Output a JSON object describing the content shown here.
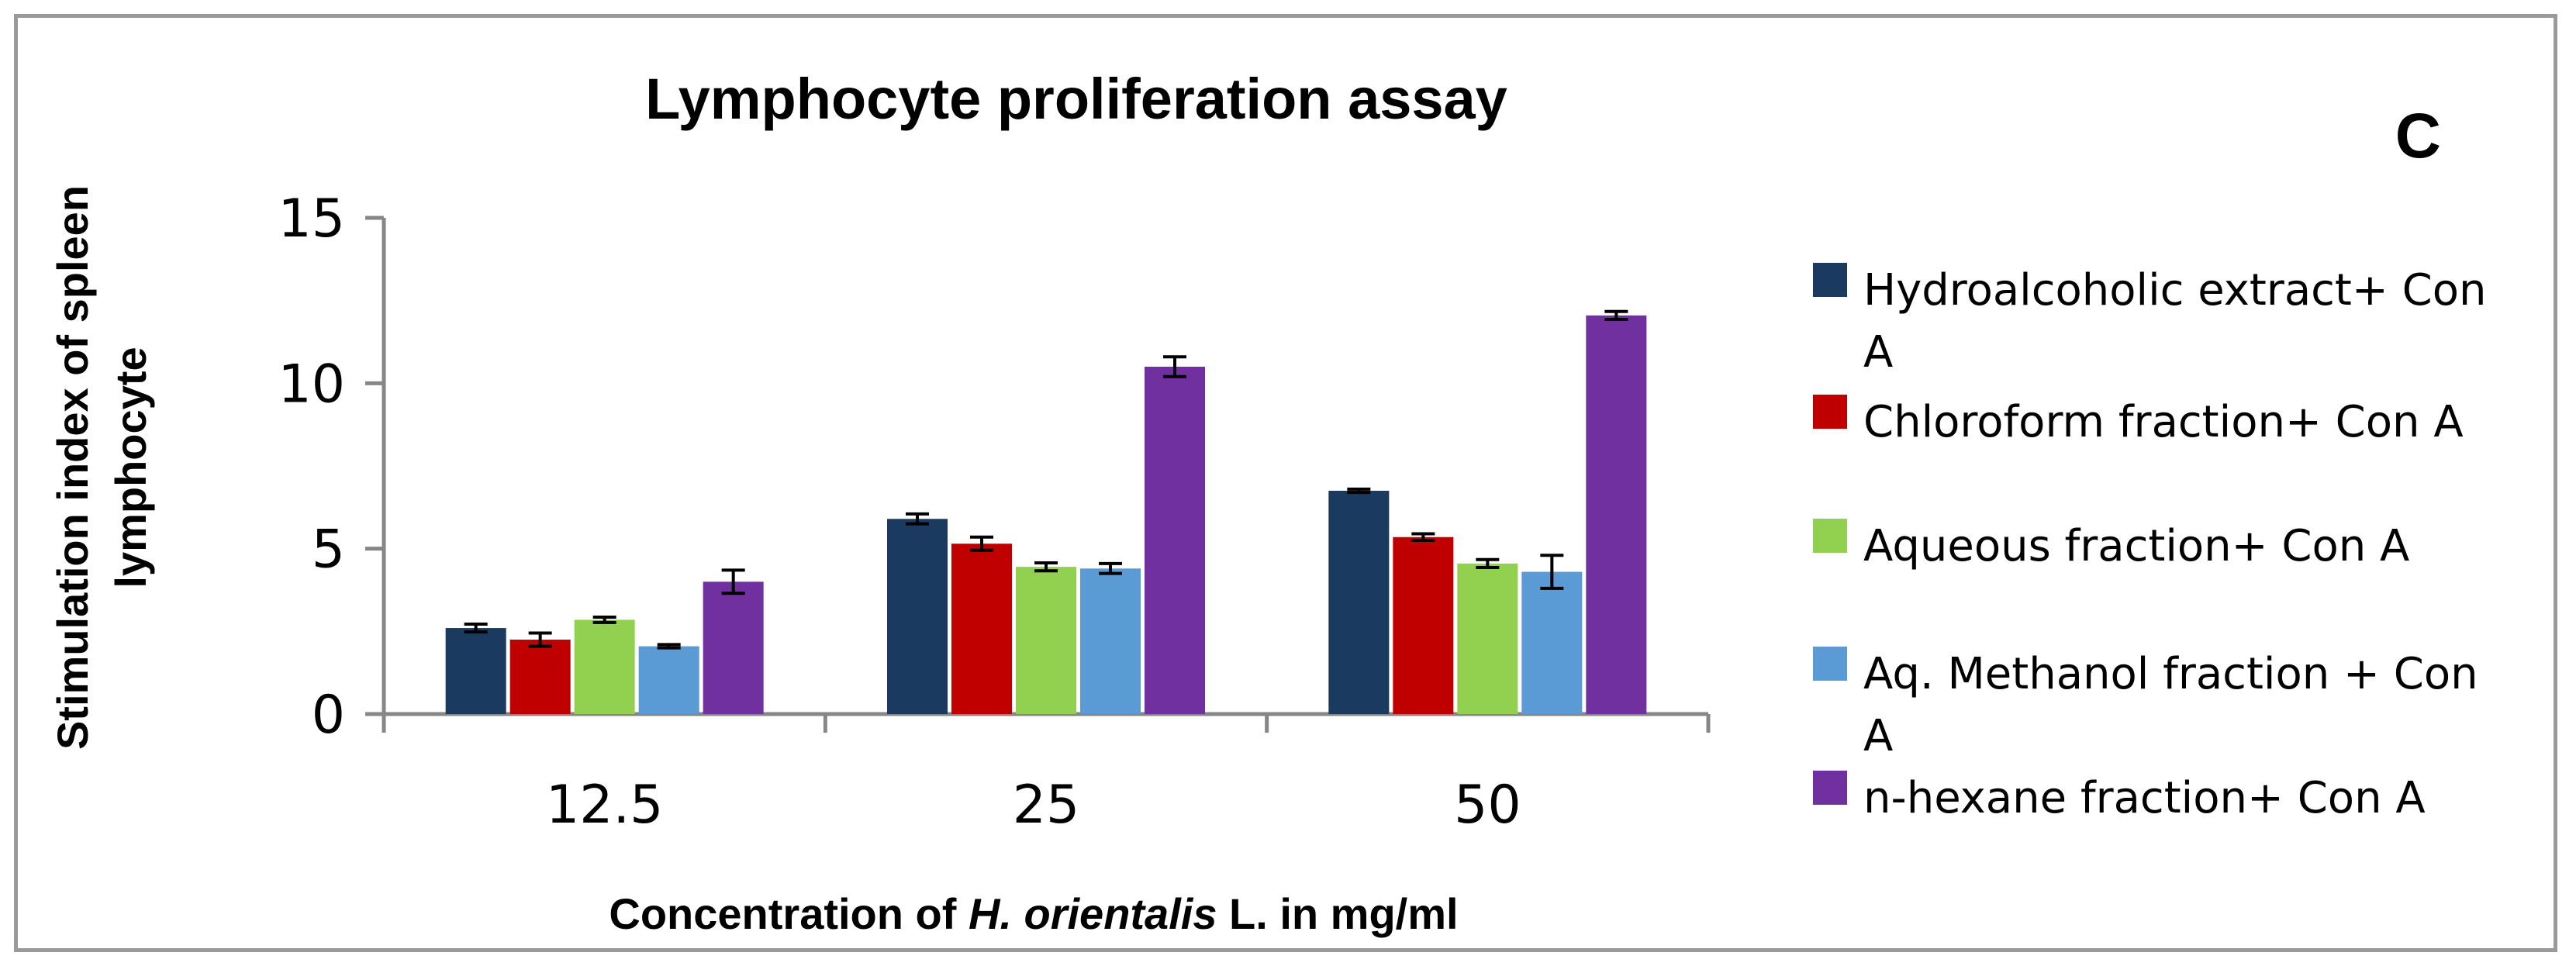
{
  "chart_data": {
    "type": "bar",
    "title": "Lymphocyte proliferation assay",
    "panel_label": "C",
    "xlabel_parts": [
      {
        "text": "Concentration of ",
        "italic": false
      },
      {
        "text": "H. orientalis",
        "italic": true
      },
      {
        "text": " L. in mg/ml",
        "italic": false
      }
    ],
    "ylabel_lines": [
      "Stimulation index of spleen",
      "lymphocyte"
    ],
    "categories": [
      "12.5",
      "25",
      "50"
    ],
    "ylim": [
      0,
      15
    ],
    "yticks": [
      0,
      5,
      10,
      15
    ],
    "grid": false,
    "legend_position": "right",
    "series": [
      {
        "name": "Hydroalcoholic extract+ Con A",
        "legend_lines": [
          "Hydroalcoholic extract+ Con",
          "A"
        ],
        "color": "#1b3a5f",
        "values": [
          2.6,
          5.9,
          6.75
        ],
        "errors": [
          0.12,
          0.15,
          0.05
        ]
      },
      {
        "name": "Chloroform fraction+ Con A",
        "legend_lines": [
          "Chloroform fraction+ Con A"
        ],
        "color": "#c00000",
        "values": [
          2.25,
          5.15,
          5.35
        ],
        "errors": [
          0.2,
          0.2,
          0.1
        ]
      },
      {
        "name": "Aqueous fraction+ Con A",
        "legend_lines": [
          "Aqueous fraction+ Con A"
        ],
        "color": "#92d050",
        "values": [
          2.85,
          4.45,
          4.55
        ],
        "errors": [
          0.08,
          0.12,
          0.12
        ]
      },
      {
        "name": "Aq. Methanol fraction + Con A",
        "legend_lines": [
          "Aq. Methanol fraction + Con",
          "A"
        ],
        "color": "#5b9bd5",
        "values": [
          2.05,
          4.4,
          4.3
        ],
        "errors": [
          0.05,
          0.15,
          0.5
        ]
      },
      {
        "name": "n-hexane fraction+ Con A",
        "legend_lines": [
          "n-hexane fraction+ Con A"
        ],
        "color": "#7030a0",
        "values": [
          4.0,
          10.5,
          12.05
        ],
        "errors": [
          0.35,
          0.3,
          0.12
        ]
      }
    ]
  }
}
